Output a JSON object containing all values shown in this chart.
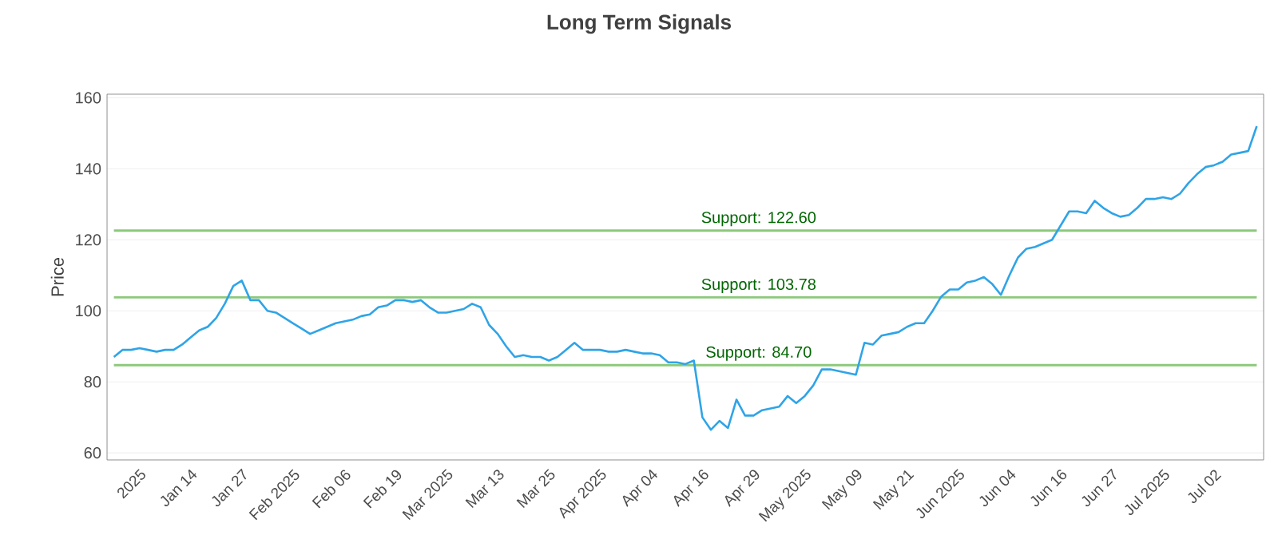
{
  "chart_data": {
    "type": "line",
    "title": "Long Term Signals",
    "ylabel": "Price",
    "categories": [
      null,
      null,
      null,
      "2025",
      null,
      null,
      null,
      null,
      null,
      "Jan 14",
      null,
      null,
      null,
      null,
      null,
      "Jan 27",
      null,
      null,
      null,
      null,
      null,
      "Feb 2025",
      null,
      null,
      null,
      null,
      null,
      "Feb 06",
      null,
      null,
      null,
      null,
      null,
      "Feb 19",
      null,
      null,
      null,
      null,
      null,
      "Mar 2025",
      null,
      null,
      null,
      null,
      null,
      "Mar 13",
      null,
      null,
      null,
      null,
      null,
      "Mar 25",
      null,
      null,
      null,
      null,
      null,
      "Apr 2025",
      null,
      null,
      null,
      null,
      null,
      "Apr 04",
      null,
      null,
      null,
      null,
      null,
      "Apr 16",
      null,
      null,
      null,
      null,
      null,
      "Apr 29",
      null,
      null,
      null,
      null,
      null,
      "May 2025",
      null,
      null,
      null,
      null,
      null,
      "May 09",
      null,
      null,
      null,
      null,
      null,
      "May 21",
      null,
      null,
      null,
      null,
      null,
      "Jun 2025",
      null,
      null,
      null,
      null,
      null,
      "Jun 04",
      null,
      null,
      null,
      null,
      null,
      "Jun 16",
      null,
      null,
      null,
      null,
      null,
      "Jun 27",
      null,
      null,
      null,
      null,
      null,
      "Jul 2025",
      null,
      null,
      null,
      null,
      null,
      "Jul 02",
      null,
      null,
      null,
      null,
      null
    ],
    "series": [
      {
        "color": "#2fa4e7",
        "values": [
          87,
          89,
          89,
          89.5,
          89,
          88.5,
          89,
          89,
          90.5,
          92.5,
          94.5,
          95.5,
          98,
          102,
          107,
          108.5,
          103,
          103,
          100,
          99.5,
          98,
          96.5,
          95,
          93.5,
          94.5,
          95.5,
          96.5,
          97,
          97.5,
          98.5,
          99,
          101,
          101.5,
          103,
          103,
          102.5,
          103,
          101,
          99.5,
          99.5,
          100,
          100.5,
          102,
          101,
          96,
          93.5,
          90,
          87,
          87.5,
          87,
          87,
          86,
          87,
          89,
          91,
          89,
          89,
          89,
          88.5,
          88.5,
          89,
          88.5,
          88,
          88,
          87.5,
          85.5,
          85.5,
          85,
          86,
          70,
          66.5,
          69,
          67,
          75,
          70.5,
          70.5,
          72,
          72.5,
          73,
          76,
          74,
          76,
          79,
          83.5,
          83.5,
          83,
          82.5,
          82,
          91,
          90.5,
          93,
          93.5,
          94,
          95.5,
          96.5,
          96.5,
          100,
          104,
          106,
          106,
          108,
          108.5,
          109.5,
          107.5,
          104.5,
          110,
          115,
          117.5,
          118,
          119,
          120,
          124,
          128,
          128,
          127.5,
          131,
          129,
          127.5,
          126.5,
          127,
          129,
          131.5,
          131.5,
          132,
          131.5,
          133,
          136,
          138.5,
          140.5,
          141,
          142,
          144,
          144.5,
          145,
          152
        ]
      }
    ],
    "ylim": [
      58,
      161
    ],
    "yticks": [
      60,
      80,
      100,
      120,
      140,
      160
    ],
    "grid": "y",
    "ref_lines": [
      {
        "axis": "y",
        "value": 122.6,
        "label": "Support: 122.60",
        "color": "#8cc97c"
      },
      {
        "axis": "y",
        "value": 103.78,
        "label": "Support: 103.78",
        "color": "#8cc97c"
      },
      {
        "axis": "y",
        "value": 84.7,
        "label": "Support: 84.70",
        "color": "#8cc97c"
      }
    ]
  }
}
